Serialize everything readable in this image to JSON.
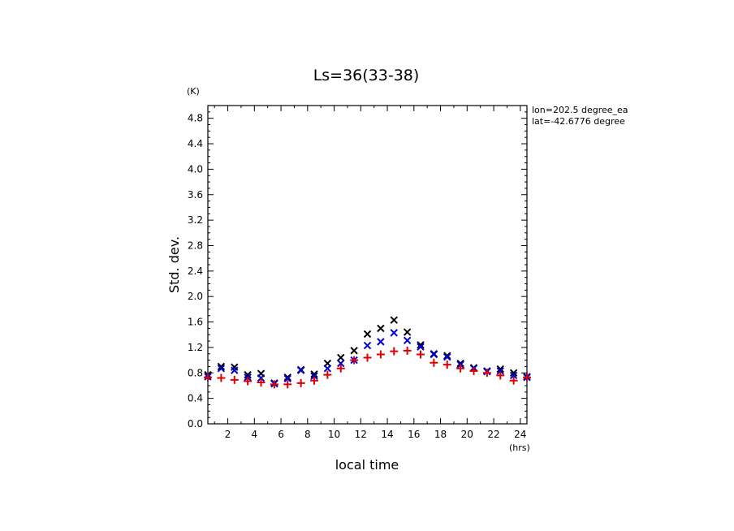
{
  "chart_data": {
    "type": "scatter",
    "title": "Ls=36(33-38)",
    "xlabel": "local time",
    "ylabel": "Std. dev.",
    "x_unit": "(hrs)",
    "y_unit": "(K)",
    "xlim": [
      0.5,
      24.5
    ],
    "ylim": [
      0.0,
      5.0
    ],
    "xticks": [
      2,
      4,
      6,
      8,
      10,
      12,
      14,
      16,
      18,
      20,
      22,
      24
    ],
    "yticks": [
      0.0,
      0.4,
      0.8,
      1.2,
      1.6,
      2.0,
      2.4,
      2.8,
      3.2,
      3.6,
      4.0,
      4.4,
      4.8
    ],
    "grid": false,
    "annotations": [
      "lon=202.5 degree_ea",
      "lat=-42.6776 degree"
    ],
    "x": [
      0.5,
      1.5,
      2.5,
      3.5,
      4.5,
      5.5,
      6.5,
      7.5,
      8.5,
      9.5,
      10.5,
      11.5,
      12.5,
      13.5,
      14.5,
      15.5,
      16.5,
      17.5,
      18.5,
      19.5,
      20.5,
      21.5,
      22.5,
      23.5,
      24.5
    ],
    "series": [
      {
        "marker": "x",
        "color": "#000000",
        "values": [
          0.77,
          0.9,
          0.89,
          0.77,
          0.79,
          0.64,
          0.73,
          0.85,
          0.78,
          0.95,
          1.04,
          1.15,
          1.41,
          1.5,
          1.63,
          1.44,
          1.24,
          1.1,
          1.07,
          0.95,
          0.88,
          0.83,
          0.86,
          0.8,
          0.74
        ]
      },
      {
        "marker": "x",
        "color": "#0000cc",
        "values": [
          0.74,
          0.87,
          0.84,
          0.73,
          0.72,
          0.63,
          0.71,
          0.84,
          0.75,
          0.87,
          0.95,
          1.0,
          1.23,
          1.29,
          1.43,
          1.31,
          1.21,
          1.09,
          1.05,
          0.93,
          0.87,
          0.82,
          0.83,
          0.76,
          0.73
        ]
      },
      {
        "marker": "+",
        "color": "#dd0000",
        "values": [
          0.73,
          0.72,
          0.69,
          0.67,
          0.65,
          0.62,
          0.62,
          0.64,
          0.68,
          0.77,
          0.87,
          1.0,
          1.04,
          1.09,
          1.14,
          1.15,
          1.09,
          0.96,
          0.93,
          0.87,
          0.83,
          0.8,
          0.76,
          0.68,
          0.73
        ]
      }
    ]
  }
}
